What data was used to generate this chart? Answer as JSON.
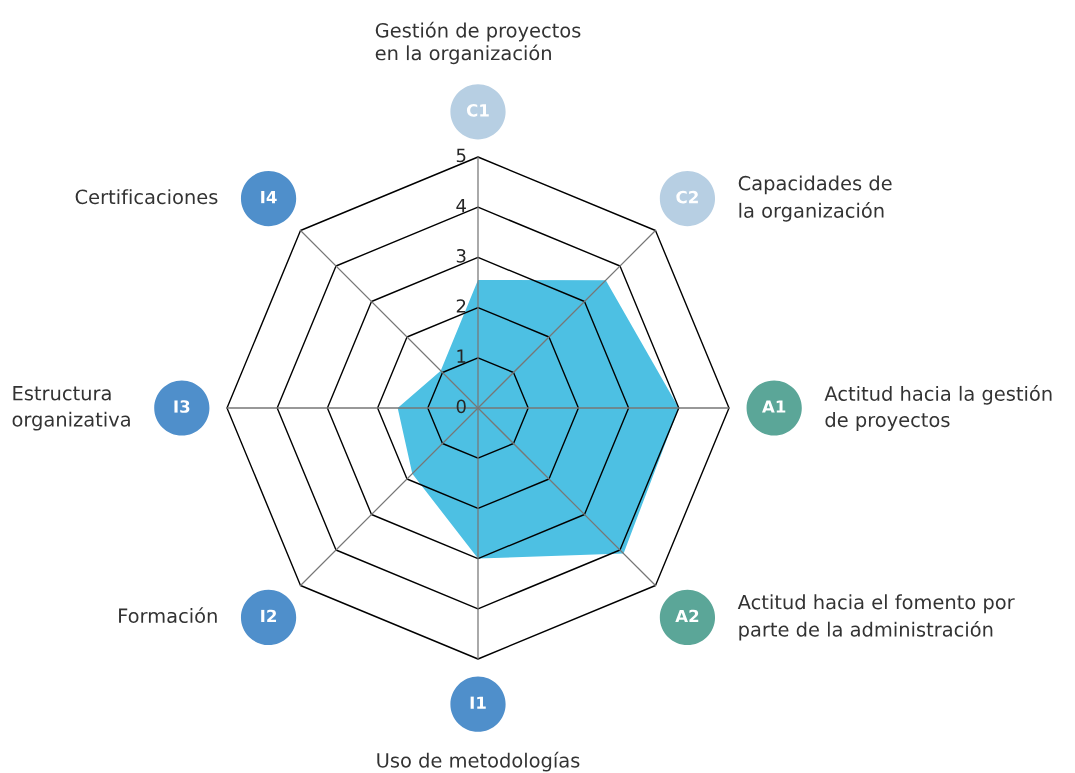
{
  "chart_data": {
    "type": "radar",
    "categories": [
      "Gestión de proyectos\nen la organización",
      "Capacidades de\nla organización",
      "Actitud hacia la gestión\nde proyectos",
      "Actitud hacia el fomento por\nparte de la administración",
      "Uso de metodologías",
      "Formación",
      "Estructura\norganizativa",
      "Certificaciones"
    ],
    "series": [
      {
        "color": "#4dc0e3",
        "values": [
          2.55,
          3.6,
          4.0,
          4.1,
          3.0,
          1.85,
          1.6,
          1.05
        ]
      }
    ],
    "ylim": [
      0,
      5
    ],
    "yticks": [
      0,
      1,
      2,
      3,
      4,
      5
    ],
    "grid": true,
    "annotations": [
      "C1",
      "C2",
      "A1",
      "A2",
      "I1",
      "I2",
      "I3",
      "I4"
    ],
    "colors": [
      "#b7cfe3",
      "#b7cfe3",
      "#5ba698",
      "#5ba698",
      "#4f8fcb",
      "#4f8fcb",
      "#4f8fcb",
      "#4f8fcb"
    ]
  }
}
